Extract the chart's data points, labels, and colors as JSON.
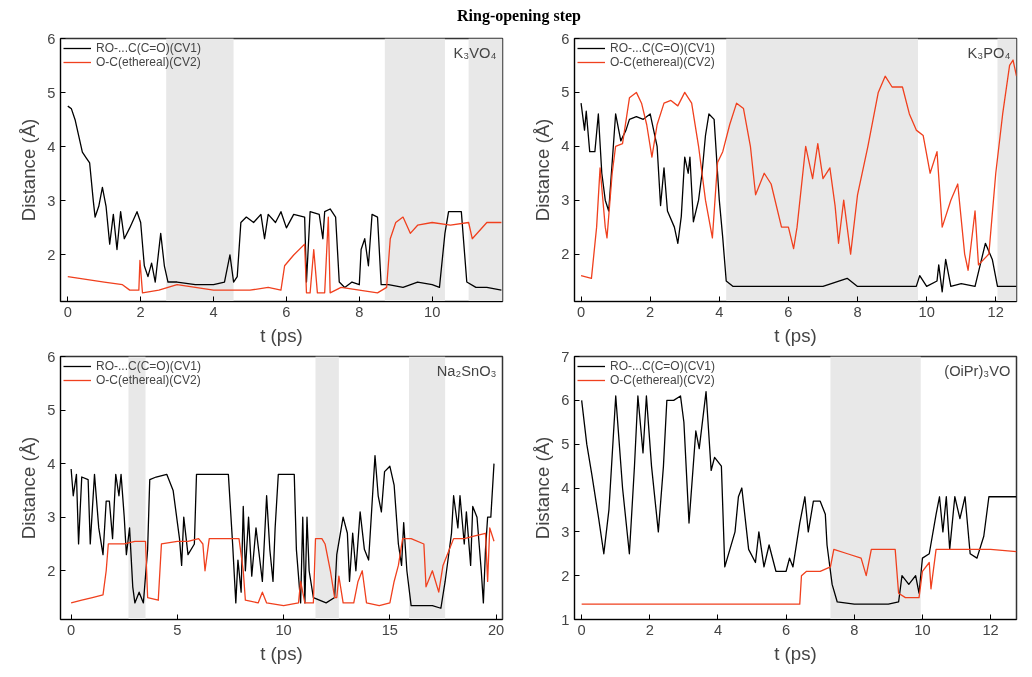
{
  "chart_data": [
    {
      "type": "line",
      "title": "Ring-opening step",
      "xlabel": "t (ps)",
      "ylabel": "Distance (Å)",
      "annotations": [
        "K₃VO₄"
      ],
      "xlim": [
        -0.2,
        11.93
      ],
      "ylim": [
        1.14,
        6
      ],
      "xticks": [
        0,
        2,
        4,
        6,
        8,
        10
      ],
      "yticks": [
        2,
        3,
        4,
        5,
        6
      ],
      "legend": "top left",
      "grid": false,
      "bands": [
        {
          "axis": "x",
          "from": 2.7,
          "to": 4.55,
          "color": "#e8e8e8"
        },
        {
          "axis": "x",
          "from": 8.7,
          "to": 10.35,
          "color": "#e8e8e8"
        },
        {
          "axis": "x",
          "from": 11.0,
          "to": 11.93,
          "color": "#e8e8e8"
        }
      ],
      "series": [
        {
          "name": "RO-...C(C=O)(CV1)",
          "color": "#000000",
          "x": [
            0,
            0.1,
            0.2,
            0.3,
            0.4,
            0.5,
            0.6,
            0.7,
            0.75,
            0.85,
            0.95,
            1.05,
            1.15,
            1.25,
            1.35,
            1.45,
            1.55,
            1.7,
            1.9,
            2.0,
            2.1,
            2.2,
            2.3,
            2.4,
            2.55,
            2.65,
            2.75,
            3.0,
            3.5,
            4.0,
            4.3,
            4.45,
            4.55,
            4.65,
            4.75,
            4.9,
            5.1,
            5.3,
            5.4,
            5.5,
            5.7,
            5.85,
            6.0,
            6.2,
            6.5,
            6.55,
            6.65,
            6.9,
            7.0,
            7.05,
            7.2,
            7.35,
            7.45,
            7.6,
            7.8,
            8.0,
            8.05,
            8.15,
            8.25,
            8.35,
            8.5,
            8.6,
            8.8,
            9.2,
            9.6,
            10.0,
            10.2,
            10.35,
            10.45,
            10.8,
            10.95,
            11.2,
            11.5,
            11.9
          ],
          "values": [
            4.75,
            4.7,
            4.5,
            4.2,
            3.9,
            3.8,
            3.7,
            3.0,
            2.7,
            2.9,
            3.25,
            2.9,
            2.2,
            2.75,
            2.1,
            2.8,
            2.3,
            2.5,
            2.8,
            2.6,
            1.8,
            1.6,
            1.85,
            1.5,
            2.4,
            1.8,
            1.5,
            1.5,
            1.45,
            1.45,
            1.5,
            2.0,
            1.5,
            1.6,
            2.6,
            2.7,
            2.6,
            2.75,
            2.3,
            2.75,
            2.6,
            2.8,
            2.5,
            2.75,
            2.7,
            1.5,
            2.8,
            2.75,
            2.3,
            2.8,
            2.85,
            2.7,
            1.5,
            1.4,
            1.5,
            1.45,
            2.1,
            2.3,
            1.8,
            2.75,
            2.7,
            1.45,
            1.45,
            1.4,
            1.5,
            1.45,
            1.4,
            2.4,
            2.8,
            2.8,
            1.5,
            1.4,
            1.4,
            1.35
          ]
        },
        {
          "name": "O-C(ethereal)(CV2)",
          "color": "#f0401e",
          "x": [
            0,
            0.5,
            1.0,
            1.5,
            1.7,
            1.95,
            1.98,
            2.05,
            2.5,
            3.0,
            3.5,
            4.0,
            4.5,
            5.0,
            5.5,
            5.85,
            5.95,
            6.2,
            6.5,
            6.55,
            6.65,
            6.75,
            6.85,
            7.05,
            7.15,
            7.2,
            7.5,
            8.0,
            8.5,
            8.75,
            8.85,
            9.0,
            9.2,
            9.4,
            9.6,
            10.0,
            10.5,
            11.0,
            11.1,
            11.5,
            11.9
          ],
          "values": [
            1.6,
            1.55,
            1.5,
            1.45,
            1.35,
            1.35,
            1.9,
            1.3,
            1.35,
            1.45,
            1.4,
            1.35,
            1.35,
            1.35,
            1.4,
            1.35,
            1.8,
            2.0,
            2.2,
            1.3,
            1.3,
            2.1,
            1.3,
            1.3,
            2.7,
            1.3,
            1.4,
            1.35,
            1.3,
            1.4,
            2.3,
            2.6,
            2.7,
            2.4,
            2.55,
            2.6,
            2.55,
            2.6,
            2.3,
            2.6,
            2.6
          ]
        }
      ]
    },
    {
      "type": "line",
      "xlabel": "t (ps)",
      "ylabel": "Distance (Å)",
      "annotations": [
        "K₃PO₄"
      ],
      "xlim": [
        -0.19,
        12.6
      ],
      "ylim": [
        1.12,
        6
      ],
      "xticks": [
        0,
        2,
        4,
        6,
        8,
        10,
        12
      ],
      "yticks": [
        2,
        3,
        4,
        5,
        6
      ],
      "legend": "top left",
      "grid": false,
      "bands": [
        {
          "axis": "x",
          "from": 4.2,
          "to": 9.75,
          "color": "#e8e8e8"
        },
        {
          "axis": "x",
          "from": 12.05,
          "to": 12.6,
          "color": "#e8e8e8"
        }
      ],
      "series": [
        {
          "name": "RO-...C(C=O)(CV1)",
          "color": "#000000",
          "x": [
            0,
            0.1,
            0.15,
            0.25,
            0.4,
            0.5,
            0.6,
            0.7,
            0.8,
            0.9,
            1.0,
            1.15,
            1.3,
            1.4,
            1.6,
            1.8,
            2.0,
            2.2,
            2.3,
            2.4,
            2.5,
            2.7,
            2.8,
            2.9,
            3.0,
            3.1,
            3.15,
            3.25,
            3.4,
            3.5,
            3.6,
            3.7,
            3.85,
            4.0,
            4.1,
            4.2,
            4.4,
            5,
            6,
            7,
            7.7,
            8,
            9,
            9.7,
            9.8,
            10,
            10.3,
            10.35,
            10.45,
            10.55,
            10.7,
            11,
            11.4,
            11.7,
            11.9,
            12.05,
            12.6
          ],
          "values": [
            4.8,
            4.3,
            4.65,
            3.9,
            3.9,
            4.6,
            3.5,
            3.0,
            2.8,
            3.7,
            4.6,
            4.1,
            4.3,
            4.5,
            4.55,
            4.5,
            4.6,
            4.0,
            2.9,
            3.6,
            2.8,
            2.5,
            2.2,
            2.7,
            3.8,
            3.5,
            3.8,
            2.6,
            3.0,
            3.5,
            4.2,
            4.6,
            4.5,
            3.0,
            2.3,
            1.5,
            1.4,
            1.4,
            1.4,
            1.4,
            1.55,
            1.4,
            1.4,
            1.4,
            1.6,
            1.4,
            1.5,
            1.8,
            1.3,
            1.9,
            1.4,
            1.45,
            1.4,
            2.2,
            1.9,
            1.4,
            1.4
          ]
        },
        {
          "name": "O-C(ethereal)(CV2)",
          "color": "#f0401e",
          "x": [
            0,
            0.3,
            0.45,
            0.55,
            0.7,
            0.75,
            0.9,
            1.0,
            1.2,
            1.4,
            1.6,
            1.75,
            1.9,
            2.05,
            2.2,
            2.4,
            2.6,
            2.8,
            3.0,
            3.2,
            3.4,
            3.6,
            3.8,
            3.95,
            4.1,
            4.3,
            4.5,
            4.7,
            4.9,
            5.05,
            5.3,
            5.5,
            5.8,
            6.0,
            6.15,
            6.25,
            6.5,
            6.7,
            6.85,
            7.0,
            7.2,
            7.35,
            7.45,
            7.6,
            7.8,
            8.0,
            8.3,
            8.6,
            8.8,
            9.0,
            9.3,
            9.5,
            9.7,
            9.9,
            10.1,
            10.3,
            10.45,
            10.7,
            10.9,
            11.1,
            11.2,
            11.4,
            11.5,
            11.8,
            12.0,
            12.2,
            12.4,
            12.5,
            12.6
          ],
          "values": [
            1.6,
            1.55,
            2.5,
            3.6,
            2.5,
            2.3,
            3.5,
            4.0,
            4.05,
            4.9,
            5.0,
            4.8,
            4.4,
            3.8,
            4.4,
            4.8,
            4.85,
            4.75,
            5.0,
            4.8,
            4.0,
            3.0,
            2.3,
            3.7,
            3.9,
            4.4,
            4.8,
            4.7,
            4.0,
            3.1,
            3.5,
            3.3,
            2.5,
            2.5,
            2.1,
            2.5,
            4.0,
            3.4,
            4.05,
            3.4,
            3.6,
            2.9,
            2.2,
            3.0,
            2.0,
            3.1,
            4.0,
            5.0,
            5.3,
            5.1,
            5.1,
            4.6,
            4.3,
            4.2,
            3.5,
            3.9,
            2.5,
            3.0,
            3.3,
            2.0,
            1.7,
            2.8,
            1.8,
            2.0,
            3.5,
            4.6,
            5.5,
            5.6,
            5.3
          ]
        }
      ]
    },
    {
      "type": "line",
      "xlabel": "t (ps)",
      "ylabel": "Distance (Å)",
      "annotations": [
        "Na₂SnO₃"
      ],
      "xlim": [
        -0.5,
        20.3
      ],
      "ylim": [
        1.09,
        6
      ],
      "xticks": [
        0,
        5,
        10,
        15,
        20
      ],
      "yticks": [
        2,
        3,
        4,
        5,
        6
      ],
      "legend": "top left",
      "grid": false,
      "bands": [
        {
          "axis": "x",
          "from": 2.7,
          "to": 3.5,
          "color": "#e8e8e8"
        },
        {
          "axis": "x",
          "from": 11.5,
          "to": 12.6,
          "color": "#e8e8e8"
        },
        {
          "axis": "x",
          "from": 15.9,
          "to": 17.6,
          "color": "#e8e8e8"
        }
      ],
      "series": [
        {
          "name": "RO-...C(C=O)(CV1)",
          "color": "#000000",
          "x": [
            0,
            0.1,
            0.25,
            0.35,
            0.5,
            0.8,
            0.9,
            1.1,
            1.3,
            1.5,
            1.65,
            1.8,
            1.95,
            2.1,
            2.25,
            2.35,
            2.5,
            2.6,
            2.75,
            2.9,
            3.0,
            3.2,
            3.4,
            3.6,
            3.7,
            4.0,
            4.5,
            4.8,
            5.0,
            5.1,
            5.2,
            5.3,
            5.5,
            5.8,
            5.9,
            7.4,
            7.6,
            7.75,
            7.85,
            8.0,
            8.1,
            8.2,
            8.35,
            8.5,
            8.7,
            9.0,
            9.2,
            9.35,
            9.5,
            9.6,
            9.75,
            10.5,
            10.6,
            10.8,
            10.9,
            11.0,
            11.1,
            11.2,
            11.4,
            12.0,
            12.4,
            12.5,
            12.8,
            13.0,
            13.1,
            13.25,
            13.4,
            13.6,
            13.8,
            14.0,
            14.3,
            14.45,
            14.6,
            14.75,
            15.0,
            15.2,
            15.4,
            15.55,
            15.65,
            15.8,
            16.0,
            17.0,
            17.4,
            17.6,
            17.9,
            18.0,
            18.2,
            18.3,
            18.5,
            18.6,
            18.8,
            18.9,
            19.1,
            19.3,
            19.4,
            19.5,
            19.6,
            19.75,
            19.9
          ],
          "values": [
            3.9,
            3.4,
            3.8,
            2.5,
            3.75,
            3.7,
            2.5,
            3.8,
            2.8,
            2.3,
            3.3,
            3.3,
            2.6,
            3.8,
            3.4,
            3.8,
            3.0,
            2.3,
            2.8,
            1.7,
            1.4,
            1.6,
            1.4,
            2.4,
            3.7,
            3.75,
            3.8,
            3.5,
            2.9,
            2.6,
            2.1,
            3.0,
            2.3,
            2.5,
            3.8,
            3.8,
            2.5,
            1.4,
            2.2,
            1.6,
            3.2,
            2.0,
            3.0,
            1.9,
            2.8,
            1.8,
            3.4,
            2.4,
            1.8,
            2.8,
            3.8,
            3.8,
            2.4,
            1.4,
            3.0,
            1.4,
            3.0,
            2.0,
            1.5,
            1.4,
            1.5,
            2.3,
            3.0,
            2.7,
            1.8,
            2.7,
            2.0,
            3.1,
            2.4,
            2.2,
            4.15,
            3.4,
            3.1,
            3.85,
            3.95,
            3.6,
            2.5,
            2.1,
            2.9,
            2.0,
            1.35,
            1.35,
            1.3,
            1.8,
            2.7,
            3.4,
            2.8,
            3.4,
            2.5,
            3.1,
            2.1,
            3.2,
            3.0,
            2.0,
            1.4,
            2.4,
            3.0,
            3.0,
            4.0
          ]
        },
        {
          "name": "O-C(ethereal)(CV2)",
          "color": "#f0401e",
          "x": [
            0,
            0.5,
            1.0,
            1.5,
            1.65,
            1.75,
            2.5,
            3.0,
            3.5,
            3.6,
            4.1,
            4.25,
            5,
            5.5,
            6.0,
            6.2,
            6.3,
            6.5,
            7.0,
            7.5,
            7.9,
            8.1,
            8.2,
            8.8,
            9.0,
            9.2,
            10.0,
            10.7,
            10.8,
            11.0,
            11.4,
            11.5,
            11.8,
            11.95,
            12.2,
            12.4,
            12.5,
            12.6,
            12.8,
            13.3,
            13.5,
            13.7,
            13.9,
            14.5,
            15.0,
            15.2,
            15.4,
            15.6,
            16.0,
            16.6,
            16.7,
            17.0,
            17.3,
            17.5,
            17.7,
            18.0,
            18.5,
            19.0,
            19.5,
            19.6,
            19.7,
            19.9
          ],
          "values": [
            1.4,
            1.45,
            1.5,
            1.55,
            2.0,
            2.5,
            2.5,
            2.55,
            2.55,
            1.5,
            1.45,
            2.5,
            2.55,
            2.55,
            2.6,
            2.5,
            2.0,
            2.6,
            2.6,
            2.6,
            2.6,
            2.0,
            1.45,
            1.4,
            1.6,
            1.4,
            1.35,
            1.4,
            1.8,
            1.4,
            1.4,
            2.6,
            2.6,
            2.5,
            2.0,
            1.5,
            1.5,
            1.9,
            1.4,
            1.4,
            1.8,
            2.0,
            1.4,
            1.35,
            1.4,
            1.8,
            2.1,
            2.6,
            2.6,
            2.5,
            1.7,
            2.0,
            1.6,
            2.1,
            2.3,
            2.6,
            2.6,
            2.65,
            2.7,
            1.8,
            2.8,
            2.55
          ]
        }
      ]
    },
    {
      "type": "line",
      "xlabel": "t (ps)",
      "ylabel": "Distance (Å)",
      "annotations": [
        "(OiPr)₃VO"
      ],
      "xlim": [
        -0.21,
        12.76
      ],
      "ylim": [
        1,
        7
      ],
      "xticks": [
        0,
        2,
        4,
        6,
        8,
        10,
        12
      ],
      "yticks": [
        1,
        2,
        3,
        4,
        5,
        6,
        7
      ],
      "legend": "top left",
      "grid": false,
      "bands": [
        {
          "axis": "x",
          "from": 7.3,
          "to": 9.95,
          "color": "#e8e8e8"
        }
      ],
      "series": [
        {
          "name": "RO-...C(C=O)(CV1)",
          "color": "#000000",
          "x": [
            0,
            0.15,
            0.3,
            0.5,
            0.65,
            0.8,
            1.0,
            1.2,
            1.4,
            1.55,
            1.65,
            1.8,
            1.9,
            2.05,
            2.25,
            2.4,
            2.5,
            2.7,
            2.9,
            3.0,
            3.15,
            3.35,
            3.45,
            3.65,
            3.8,
            3.9,
            4.1,
            4.2,
            4.5,
            4.6,
            4.7,
            4.9,
            5.1,
            5.2,
            5.35,
            5.5,
            5.7,
            6.0,
            6.1,
            6.2,
            6.4,
            6.55,
            6.65,
            6.8,
            7.0,
            7.15,
            7.2,
            7.35,
            7.5,
            8,
            9,
            9.3,
            9.4,
            9.6,
            9.8,
            9.9,
            10.0,
            10.2,
            10.4,
            10.5,
            10.6,
            10.7,
            10.8,
            10.95,
            11.1,
            11.25,
            11.4,
            11.6,
            11.8,
            11.95,
            12.3,
            12.76
          ],
          "values": [
            6.0,
            5.0,
            4.3,
            3.3,
            2.5,
            3.5,
            6.1,
            4.0,
            2.5,
            4.5,
            6.1,
            4.8,
            6.1,
            4.5,
            3.0,
            4.5,
            6.0,
            6.0,
            6.1,
            5.5,
            3.2,
            5.3,
            4.9,
            6.2,
            4.4,
            4.7,
            4.5,
            2.2,
            3.0,
            3.8,
            4.0,
            2.6,
            2.3,
            3.0,
            2.2,
            2.7,
            2.1,
            2.1,
            2.4,
            2.2,
            3.2,
            3.8,
            3.0,
            3.7,
            3.7,
            3.4,
            2.7,
            1.8,
            1.4,
            1.35,
            1.35,
            1.4,
            2.0,
            1.8,
            2.0,
            1.6,
            2.4,
            2.5,
            3.4,
            3.8,
            3.0,
            3.8,
            2.6,
            3.8,
            3.3,
            3.8,
            2.5,
            2.4,
            2.9,
            3.8,
            3.8,
            3.8
          ]
        },
        {
          "name": "O-C(ethereal)(CV2)",
          "color": "#f0401e",
          "x": [
            0,
            2,
            4,
            6,
            6.4,
            6.45,
            6.6,
            7.0,
            7.3,
            7.4,
            7.8,
            8.2,
            8.35,
            8.5,
            9.2,
            9.3,
            9.5,
            9.9,
            10.0,
            10.2,
            10.25,
            10.4,
            11,
            12,
            12.76
          ],
          "values": [
            1.35,
            1.35,
            1.35,
            1.35,
            1.35,
            2.0,
            2.1,
            2.1,
            2.2,
            2.6,
            2.5,
            2.4,
            2.0,
            2.6,
            2.6,
            1.6,
            1.5,
            1.5,
            2.1,
            2.3,
            1.7,
            2.6,
            2.6,
            2.6,
            2.55
          ]
        }
      ]
    }
  ]
}
